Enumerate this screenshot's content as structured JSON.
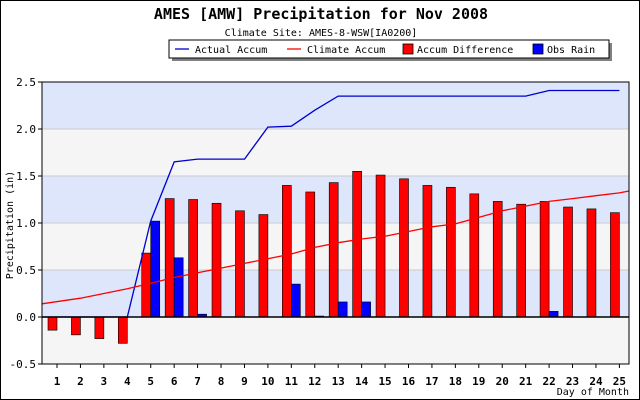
{
  "chart_data": {
    "type": "bar",
    "title": "AMES [AMW] Precipitation for Nov 2008",
    "subtitle": "Climate Site: AMES-8-WSW[IA0200]",
    "xlabel": "Day of Month",
    "ylabel": "Precipitation (in)",
    "ylim": [
      -0.5,
      2.5
    ],
    "yticks": [
      "-0.5",
      "0.0",
      "0.5",
      "1.0",
      "1.5",
      "2.0",
      "2.5"
    ],
    "categories": [
      "1",
      "2",
      "3",
      "4",
      "5",
      "6",
      "7",
      "8",
      "9",
      "10",
      "11",
      "12",
      "13",
      "14",
      "15",
      "16",
      "17",
      "18",
      "19",
      "20",
      "21",
      "22",
      "23",
      "24",
      "25"
    ],
    "legend_position": "top",
    "series": [
      {
        "name": "Actual Accum",
        "type": "line",
        "color": "#0000cc",
        "values": [
          0.0,
          0.0,
          0.0,
          0.0,
          1.02,
          1.65,
          1.68,
          1.68,
          1.68,
          2.02,
          2.03,
          2.2,
          2.35,
          2.35,
          2.35,
          2.35,
          2.35,
          2.35,
          2.35,
          2.35,
          2.35,
          2.41,
          2.41,
          2.41,
          2.41
        ]
      },
      {
        "name": "Climate Accum",
        "type": "line",
        "color": "#ff0000",
        "values": [
          0.14,
          0.2,
          0.25,
          0.3,
          0.36,
          0.42,
          0.47,
          0.52,
          0.57,
          0.62,
          0.67,
          0.74,
          0.79,
          0.83,
          0.86,
          0.91,
          0.96,
          0.99,
          1.06,
          1.13,
          1.18,
          1.23,
          1.26,
          1.29,
          1.32
        ]
      },
      {
        "name": "Accum Difference",
        "type": "bar",
        "color": "#ff0000",
        "values": [
          -0.14,
          -0.19,
          -0.23,
          -0.28,
          0.68,
          1.26,
          1.25,
          1.21,
          1.13,
          1.09,
          1.4,
          1.33,
          1.43,
          1.55,
          1.51,
          1.47,
          1.4,
          1.38,
          1.31,
          1.23,
          1.2,
          1.23,
          1.17,
          1.15,
          1.11
        ]
      },
      {
        "name": "Obs Rain",
        "type": "bar",
        "color": "#0000ff",
        "values": [
          0.0,
          0.0,
          0.0,
          0.0,
          1.02,
          0.63,
          0.03,
          0.0,
          0.0,
          0.0,
          0.35,
          0.01,
          0.16,
          0.16,
          0.0,
          0.0,
          0.0,
          0.0,
          0.0,
          0.0,
          0.0,
          0.06,
          0.0,
          0.0,
          0.0
        ]
      }
    ],
    "colors": {
      "band_light": "#f5f5f5",
      "band_blue": "#dde6fb",
      "axis": "#000000"
    }
  }
}
